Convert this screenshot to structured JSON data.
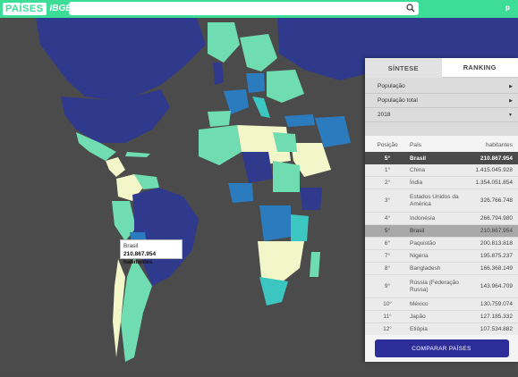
{
  "header": {
    "logo_paises": "PAÍSES",
    "logo_ibge": "IBGE",
    "search_icon": "search-icon",
    "right_text": "p"
  },
  "map": {
    "tooltip": {
      "country": "Brasil",
      "value": "210.867.954 habitantes"
    },
    "colors": {
      "ocean": "#4b4b4b",
      "dark": "#2f3a8c",
      "mid": "#2b7bbf",
      "teal": "#3cc6c2",
      "light": "#6fdcb1",
      "pale": "#f3f6c8"
    }
  },
  "panel": {
    "tabs": [
      {
        "label": "SÍNTESE",
        "active": true
      },
      {
        "label": "RANKING",
        "active": false
      }
    ],
    "selects": [
      {
        "value": "População"
      },
      {
        "value": "População total"
      },
      {
        "value": "2018"
      }
    ],
    "headers": {
      "pos": "Posição",
      "name": "País",
      "value": "habitantes"
    },
    "highlight": {
      "pos": "5°",
      "name": "Brasil",
      "value": "210.867.954"
    },
    "rows": [
      {
        "pos": "1°",
        "name": "China",
        "value": "1.415.045.928"
      },
      {
        "pos": "2°",
        "name": "Índia",
        "value": "1.354.051.854"
      },
      {
        "pos": "3°",
        "name": "Estados Unidos da América",
        "value": "326.766.748"
      },
      {
        "pos": "4°",
        "name": "Indonésia",
        "value": "266.794.980"
      },
      {
        "pos": "5°",
        "name": "Brasil",
        "value": "210.867.954"
      },
      {
        "pos": "6°",
        "name": "Paquistão",
        "value": "200.813.818"
      },
      {
        "pos": "7°",
        "name": "Nigéria",
        "value": "195.875.237"
      },
      {
        "pos": "8°",
        "name": "Bangladesh",
        "value": "166.368.149"
      },
      {
        "pos": "9°",
        "name": "Rússia (Federação Russa)",
        "value": "143.964.709"
      },
      {
        "pos": "10°",
        "name": "México",
        "value": "130.759.074"
      },
      {
        "pos": "11°",
        "name": "Japão",
        "value": "127.185.332"
      },
      {
        "pos": "12°",
        "name": "Etiópia",
        "value": "107.534.882"
      }
    ],
    "compare_button": "COMPARAR PAÍSES"
  }
}
